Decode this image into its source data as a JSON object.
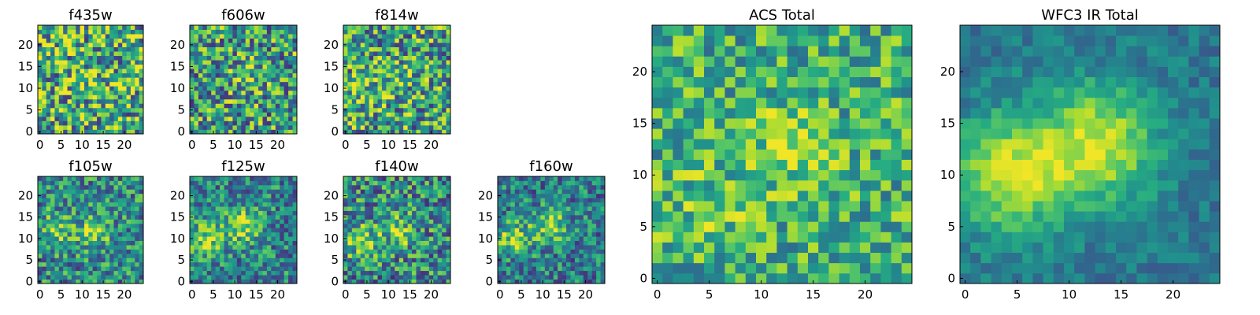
{
  "colormap": "viridis",
  "chart_data": [
    {
      "type": "heatmap",
      "title": "f435w",
      "grid": false,
      "size": 25,
      "xticks": [
        "0",
        "5",
        "10",
        "15",
        "20"
      ],
      "yticks": [
        "0",
        "5",
        "10",
        "15",
        "20"
      ],
      "xlim": [
        0,
        25
      ],
      "ylim": [
        0,
        25
      ],
      "seed": 11,
      "noise": 0.46,
      "sources": [
        [
          12,
          12,
          3.0,
          0.1
        ]
      ],
      "base": 0.62,
      "clip": [
        0.05,
        0.98
      ]
    },
    {
      "type": "heatmap",
      "title": "f606w",
      "grid": false,
      "size": 25,
      "xticks": [
        "0",
        "5",
        "10",
        "15",
        "20"
      ],
      "yticks": [
        "0",
        "5",
        "10",
        "15",
        "20"
      ],
      "xlim": [
        0,
        25
      ],
      "ylim": [
        0,
        25
      ],
      "seed": 23,
      "noise": 0.42,
      "sources": [
        [
          13,
          13,
          2.5,
          0.18
        ]
      ],
      "base": 0.55,
      "clip": [
        0.05,
        0.98
      ]
    },
    {
      "type": "heatmap",
      "title": "f814w",
      "grid": false,
      "size": 25,
      "xticks": [
        "0",
        "5",
        "10",
        "15",
        "20"
      ],
      "yticks": [
        "0",
        "5",
        "10",
        "15",
        "20"
      ],
      "xlim": [
        0,
        25
      ],
      "ylim": [
        0,
        25
      ],
      "seed": 37,
      "noise": 0.42,
      "sources": [
        [
          4,
          9,
          3.0,
          0.15
        ],
        [
          12,
          12,
          3.0,
          0.1
        ]
      ],
      "base": 0.57,
      "clip": [
        0.05,
        0.98
      ]
    },
    {
      "type": "heatmap",
      "title": "f105w",
      "grid": false,
      "size": 25,
      "xticks": [
        "0",
        "5",
        "10",
        "15",
        "20"
      ],
      "yticks": [
        "0",
        "5",
        "10",
        "15",
        "20"
      ],
      "xlim": [
        0,
        25
      ],
      "ylim": [
        0,
        25
      ],
      "seed": 41,
      "noise": 0.32,
      "sources": [
        [
          13,
          12,
          2.5,
          0.35
        ],
        [
          4,
          12,
          3.0,
          0.22
        ]
      ],
      "base": 0.48,
      "clip": [
        0.05,
        0.98
      ]
    },
    {
      "type": "heatmap",
      "title": "f125w",
      "grid": false,
      "size": 25,
      "xticks": [
        "0",
        "5",
        "10",
        "15",
        "20"
      ],
      "yticks": [
        "0",
        "5",
        "10",
        "15",
        "20"
      ],
      "xlim": [
        0,
        25
      ],
      "ylim": [
        0,
        25
      ],
      "seed": 53,
      "noise": 0.3,
      "sources": [
        [
          12,
          13,
          3.0,
          0.38
        ],
        [
          3,
          10,
          3.0,
          0.35
        ]
      ],
      "base": 0.45,
      "clip": [
        0.05,
        0.98
      ]
    },
    {
      "type": "heatmap",
      "title": "f140w",
      "grid": false,
      "size": 25,
      "xticks": [
        "0",
        "5",
        "10",
        "15",
        "20"
      ],
      "yticks": [
        "0",
        "5",
        "10",
        "15",
        "20"
      ],
      "xlim": [
        0,
        25
      ],
      "ylim": [
        0,
        25
      ],
      "seed": 67,
      "noise": 0.36,
      "sources": [
        [
          12,
          12,
          3.0,
          0.28
        ],
        [
          3,
          10,
          3.0,
          0.26
        ]
      ],
      "base": 0.48,
      "clip": [
        0.05,
        0.98
      ]
    },
    {
      "type": "heatmap",
      "title": "f160w",
      "grid": false,
      "size": 25,
      "xticks": [
        "0",
        "5",
        "10",
        "15",
        "20"
      ],
      "yticks": [
        "0",
        "5",
        "10",
        "15",
        "20"
      ],
      "xlim": [
        0,
        25
      ],
      "ylim": [
        0,
        25
      ],
      "seed": 79,
      "noise": 0.3,
      "sources": [
        [
          12,
          13,
          3.0,
          0.4
        ],
        [
          3,
          10,
          3.0,
          0.4
        ]
      ],
      "base": 0.42,
      "clip": [
        0.05,
        0.98
      ]
    },
    {
      "type": "heatmap",
      "title": "ACS Total",
      "grid": false,
      "size": 25,
      "xticks": [
        "0",
        "5",
        "10",
        "15",
        "20"
      ],
      "yticks": [
        "0",
        "5",
        "10",
        "15",
        "20"
      ],
      "xlim": [
        0,
        25
      ],
      "ylim": [
        0,
        25
      ],
      "seed": 97,
      "noise": 0.28,
      "sources": [
        [
          13,
          13,
          2.5,
          0.28
        ],
        [
          5,
          7,
          3.0,
          0.12
        ]
      ],
      "base": 0.63,
      "clip": [
        0.05,
        0.98
      ]
    },
    {
      "type": "heatmap",
      "title": "WFC3 IR Total",
      "grid": false,
      "size": 25,
      "xticks": [
        "0",
        "5",
        "10",
        "15",
        "20"
      ],
      "yticks": [
        "0",
        "5",
        "10",
        "15",
        "20"
      ],
      "xlim": [
        0,
        25
      ],
      "ylim": [
        0,
        25
      ],
      "seed": 101,
      "noise": 0.12,
      "sources": [
        [
          13,
          13,
          4.0,
          0.52
        ],
        [
          4,
          10,
          4.0,
          0.5
        ]
      ],
      "base": 0.4,
      "clip": [
        0.05,
        0.98
      ]
    }
  ]
}
